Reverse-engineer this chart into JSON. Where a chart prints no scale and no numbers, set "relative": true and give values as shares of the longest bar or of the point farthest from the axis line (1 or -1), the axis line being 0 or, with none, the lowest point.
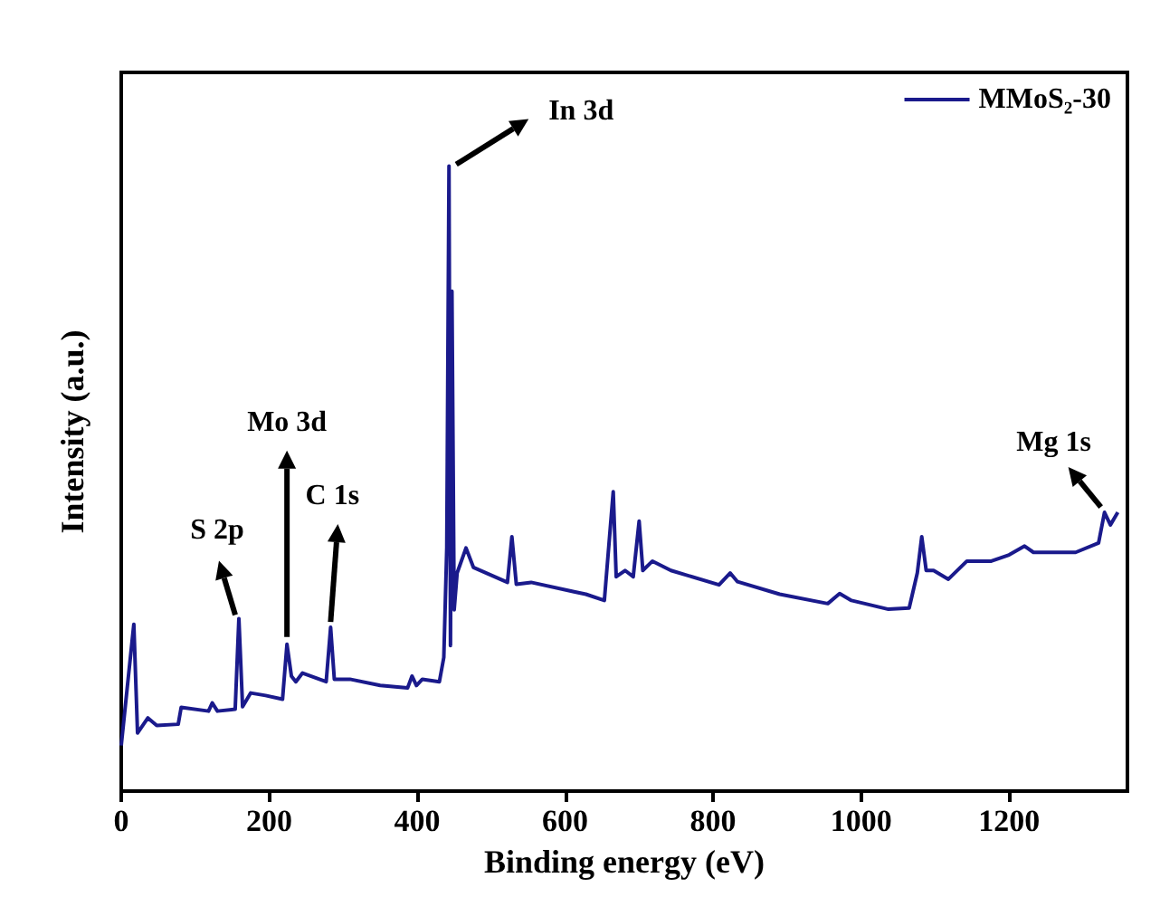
{
  "chart_data": {
    "type": "line",
    "relative": true,
    "xlabel": "Binding energy (eV)",
    "ylabel": "Intensity (a.u.)",
    "xlim": [
      0,
      1360
    ],
    "xticks": [
      0,
      200,
      400,
      600,
      800,
      1000,
      1200
    ],
    "grid": false,
    "legend": "top right",
    "marker": "none",
    "line_style": "solid",
    "series": [
      {
        "name": "MMoS₂-30",
        "color": "#1a1a8c",
        "x": [
          0,
          17,
          22,
          36,
          48,
          77,
          81,
          118,
          123,
          130,
          154,
          159,
          164,
          175,
          195,
          218,
          224,
          230,
          236,
          245,
          277,
          283,
          288,
          309,
          350,
          387,
          393,
          399,
          407,
          430,
          436,
          440,
          443,
          445,
          447,
          450,
          454,
          466,
          476,
          522,
          528,
          534,
          554,
          612,
          628,
          653,
          665,
          669,
          681,
          692,
          700,
          705,
          718,
          743,
          808,
          823,
          833,
          890,
          955,
          971,
          987,
          1037,
          1065,
          1076,
          1082,
          1088,
          1098,
          1118,
          1143,
          1176,
          1200,
          1221,
          1233,
          1290,
          1321,
          1329,
          1337,
          1347
        ],
        "values": [
          0.073,
          0.267,
          0.093,
          0.117,
          0.105,
          0.107,
          0.134,
          0.128,
          0.141,
          0.128,
          0.131,
          0.276,
          0.135,
          0.157,
          0.153,
          0.147,
          0.235,
          0.184,
          0.175,
          0.189,
          0.175,
          0.262,
          0.179,
          0.179,
          0.169,
          0.165,
          0.184,
          0.169,
          0.179,
          0.175,
          0.214,
          0.39,
          1,
          0.233,
          0.8,
          0.29,
          0.349,
          0.389,
          0.358,
          0.334,
          0.407,
          0.331,
          0.334,
          0.319,
          0.315,
          0.305,
          0.479,
          0.343,
          0.353,
          0.343,
          0.432,
          0.353,
          0.368,
          0.353,
          0.33,
          0.349,
          0.335,
          0.315,
          0.3,
          0.316,
          0.305,
          0.291,
          0.293,
          0.349,
          0.407,
          0.353,
          0.353,
          0.339,
          0.368,
          0.368,
          0.378,
          0.392,
          0.382,
          0.382,
          0.397,
          0.446,
          0.426,
          0.446
        ]
      }
    ],
    "annotations": [
      {
        "text": "S 2p",
        "x": 159,
        "y": 0.276
      },
      {
        "text": "Mo 3d",
        "x": 224,
        "y": 0.235
      },
      {
        "text": "C 1s",
        "x": 283,
        "y": 0.262
      },
      {
        "text": "In 3d",
        "x": 443,
        "y": 1
      },
      {
        "text": "Mg 1s",
        "x": 1329,
        "y": 0.446
      }
    ]
  }
}
